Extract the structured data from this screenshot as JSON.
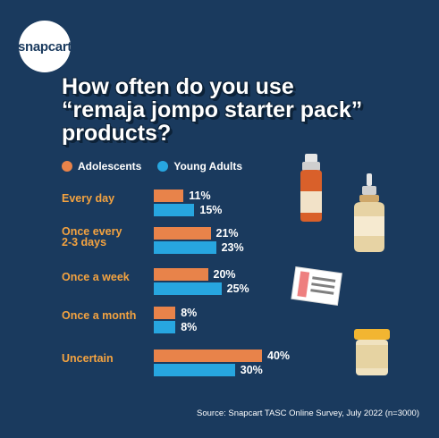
{
  "brand": {
    "logo_text": "snapcart"
  },
  "chart_data": {
    "type": "bar",
    "orientation": "horizontal",
    "title_lines": [
      "How often do you use",
      "“remaja jompo starter pack”",
      "products?"
    ],
    "categories": [
      "Every day",
      "Once every\n2-3 days",
      "Once a week",
      "Once a month",
      "Uncertain"
    ],
    "series": [
      {
        "name": "Adolescents",
        "color": "#e8834a",
        "values": [
          11,
          21,
          20,
          8,
          40
        ]
      },
      {
        "name": "Young Adults",
        "color": "#27a6e0",
        "values": [
          15,
          23,
          25,
          8,
          30
        ]
      }
    ],
    "value_suffix": "%",
    "xlim": [
      0,
      40
    ],
    "legend_position": "top-left",
    "grid": false
  },
  "source": "Source: Snapcart TASC Online Survey, July 2022 (n=3000)"
}
